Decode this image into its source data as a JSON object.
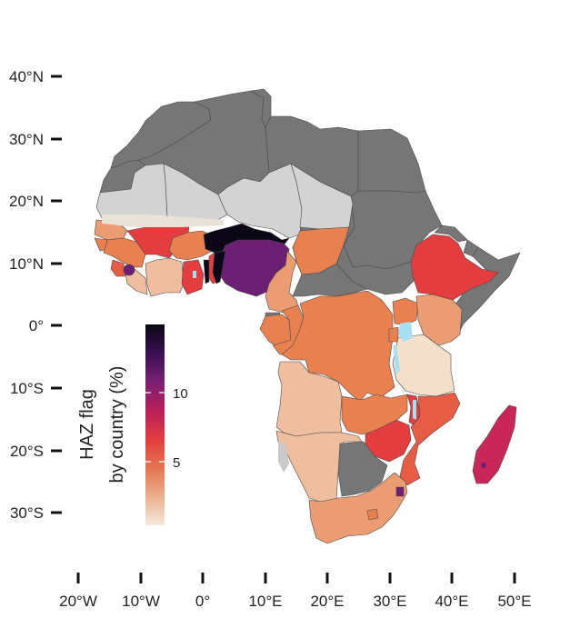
{
  "map": {
    "axes": {
      "lat_ticks": [
        "40°N",
        "30°N",
        "20°N",
        "10°N",
        "0°",
        "10°S",
        "20°S",
        "30°S"
      ],
      "lon_ticks": [
        "20°W",
        "10°W",
        "0°",
        "10°E",
        "20°E",
        "30°E",
        "40°E",
        "50°E"
      ]
    },
    "legend": {
      "title_line1": "HAZ flag",
      "title_line2": "by country (%)",
      "tick_labels": [
        "10",
        "5"
      ],
      "scale": "magma",
      "colors": [
        "#f4e9dc",
        "#ecb08f",
        "#e57450",
        "#e33d40",
        "#ba1f5a",
        "#7a2072",
        "#3a0f52",
        "#0a0713"
      ]
    },
    "colors": {
      "no_data": "#767676",
      "no_survey": "#d3d3d3",
      "water": "#a9dff2",
      "highest": "#0b0716",
      "very_high": "#6c1f73",
      "high_magenta": "#c9275a",
      "high": "#e33d40",
      "mid_high": "#e65c45",
      "mid": "#e8804f",
      "mid_low": "#ec9c73",
      "low": "#efbe9e",
      "lowest": "#f3dfca"
    }
  }
}
